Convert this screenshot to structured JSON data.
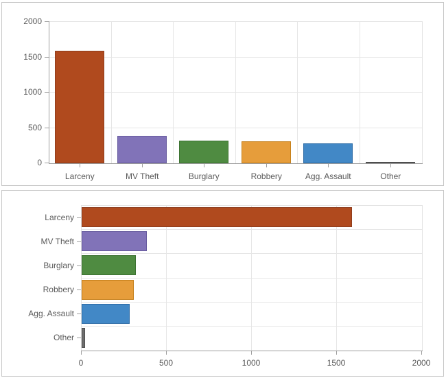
{
  "page": {
    "background_color": "#ffffff",
    "panel_border_color": "#c6c6c6",
    "gridline_color": "#e6e6e6",
    "axis_color": "#9d9d9d",
    "label_color": "#5a5a5a"
  },
  "chart_data": [
    {
      "type": "bar",
      "orientation": "vertical",
      "title": "",
      "xlabel": "",
      "ylabel": "",
      "categories": [
        "Larceny",
        "MV Theft",
        "Burglary",
        "Robbery",
        "Agg. Assault",
        "Other"
      ],
      "values": [
        1590,
        385,
        317,
        307,
        283,
        19
      ],
      "value_axis_ticks": [
        "0",
        "500",
        "1000",
        "1500",
        "2000"
      ],
      "value_axis_tick_values": [
        0,
        500,
        1000,
        1500,
        2000
      ],
      "ylim": [
        0,
        2000
      ],
      "grid": true,
      "legend": false,
      "bar_fill_colors": [
        "#b04a1e",
        "#8173b8",
        "#4f8b41",
        "#e69d3b",
        "#4288c6",
        "#6e6e6e"
      ],
      "bar_border_colors": [
        "#8e3c1c",
        "#665a9e",
        "#3c7231",
        "#c57f1a",
        "#2d6ca6",
        "#4e4e4e"
      ]
    },
    {
      "type": "bar",
      "orientation": "horizontal",
      "title": "",
      "xlabel": "",
      "ylabel": "",
      "categories": [
        "Larceny",
        "MV Theft",
        "Burglary",
        "Robbery",
        "Agg. Assault",
        "Other"
      ],
      "values": [
        1590,
        385,
        317,
        307,
        283,
        19
      ],
      "value_axis_ticks": [
        "0",
        "500",
        "1000",
        "1500",
        "2000"
      ],
      "value_axis_tick_values": [
        0,
        500,
        1000,
        1500,
        2000
      ],
      "xlim": [
        0,
        2000
      ],
      "grid": true,
      "legend": false,
      "bar_fill_colors": [
        "#b04a1e",
        "#8173b8",
        "#4f8b41",
        "#e69d3b",
        "#4288c6",
        "#6e6e6e"
      ],
      "bar_border_colors": [
        "#8e3c1c",
        "#665a9e",
        "#3c7231",
        "#c57f1a",
        "#2d6ca6",
        "#4e4e4e"
      ]
    }
  ]
}
